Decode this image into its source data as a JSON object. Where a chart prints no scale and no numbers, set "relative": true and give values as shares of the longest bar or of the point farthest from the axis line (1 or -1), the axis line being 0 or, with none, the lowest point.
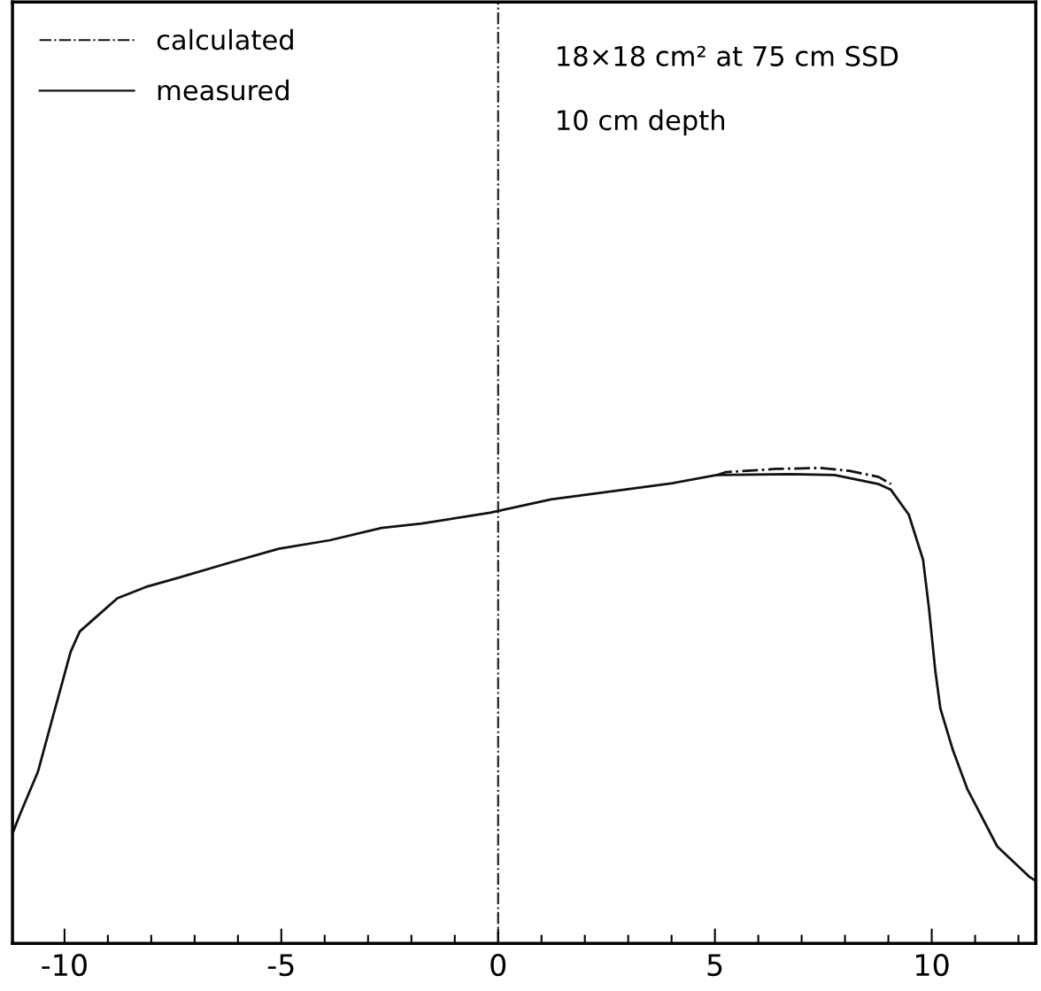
{
  "chart_data": {
    "type": "line",
    "relative": true,
    "xlim": [
      -11.2,
      12.4
    ],
    "xticks": [
      -10,
      {
        "value": -9,
        "label": null
      },
      {
        "value": -8,
        "label": null
      },
      {
        "value": -7,
        "label": null
      },
      {
        "value": -6,
        "label": null
      },
      -5,
      {
        "value": -4,
        "label": null
      },
      {
        "value": -3,
        "label": null
      },
      {
        "value": -2,
        "label": null
      },
      {
        "value": -1,
        "label": null
      },
      0,
      {
        "value": 1,
        "label": null
      },
      {
        "value": 2,
        "label": null
      },
      {
        "value": 3,
        "label": null
      },
      {
        "value": 4,
        "label": null
      },
      5,
      {
        "value": 6,
        "label": null
      },
      {
        "value": 7,
        "label": null
      },
      {
        "value": 8,
        "label": null
      },
      {
        "value": 9,
        "label": null
      },
      10,
      {
        "value": 11,
        "label": null
      },
      {
        "value": 12,
        "label": null
      }
    ],
    "series": [
      {
        "name": "calculated",
        "color": "#111111",
        "line_style": "dashed",
        "x": [
          5.04,
          5.24,
          6.41,
          7.43,
          8.1,
          8.78,
          9.06
        ],
        "values": [
          0.985,
          0.991,
          0.998,
          1.0,
          0.994,
          0.981,
          0.966
        ]
      },
      {
        "name": "measured",
        "color": "#111111",
        "line_style": "solid",
        "x": [
          -11.18,
          -11.02,
          -10.61,
          -10.27,
          -9.86,
          -9.65,
          -9.24,
          -8.78,
          -8.08,
          -7.41,
          -6.22,
          -5.06,
          -3.88,
          -2.69,
          -1.76,
          -0.18,
          1.22,
          2.8,
          4.02,
          5.04,
          6.73,
          7.76,
          8.78,
          9.06,
          9.47,
          9.8,
          9.94,
          10.08,
          10.2,
          10.49,
          10.82,
          11.51,
          12.24,
          12.39
        ],
        "values": [
          0.236,
          0.273,
          0.362,
          0.476,
          0.613,
          0.656,
          0.689,
          0.726,
          0.751,
          0.768,
          0.8,
          0.83,
          0.848,
          0.874,
          0.883,
          0.906,
          0.934,
          0.953,
          0.968,
          0.985,
          0.987,
          0.985,
          0.966,
          0.954,
          0.902,
          0.807,
          0.702,
          0.575,
          0.494,
          0.406,
          0.325,
          0.204,
          0.141,
          0.132
        ]
      }
    ],
    "ref_lines": [
      {
        "axis": "x",
        "value": 0
      }
    ],
    "annotations": [
      "18×18 cm² at 75 cm SSD",
      "10 cm depth"
    ],
    "legend": "top left",
    "grid": false
  }
}
